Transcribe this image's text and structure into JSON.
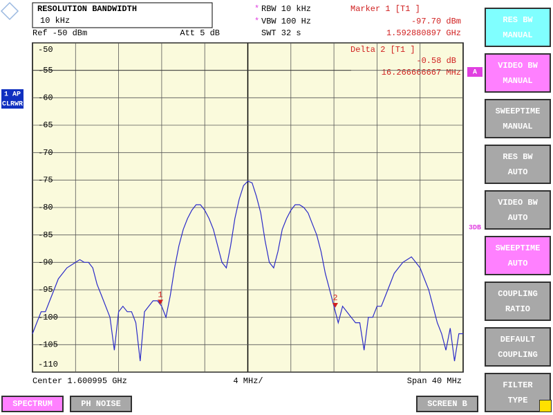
{
  "header": {
    "title": "RESOLUTION BANDWIDTH",
    "value": "10 kHz"
  },
  "settings": {
    "rbw": "RBW 10 kHz",
    "vbw": "VBW 100 Hz",
    "swt": "SWT 32 s",
    "ref": "Ref -50 dBm",
    "att": "Att 5 dB"
  },
  "marker_info": {
    "marker1": [
      "Marker 1 [T1 ]",
      "-97.70 dBm",
      "1.592880897 GHz"
    ],
    "delta2": [
      "Delta 2 [T1 ]",
      "-0.58 dB",
      "16.266666667 MHz"
    ]
  },
  "trace_status": [
    "1 AP",
    "CLRWR"
  ],
  "side_labels": [
    "A",
    "3DB"
  ],
  "chart_data": {
    "type": "line",
    "series": [
      {
        "color": "#2a2ac8",
        "values": [
          -103,
          -101,
          -99,
          -99,
          -97,
          -95,
          -93,
          -92,
          -91,
          -90.5,
          -90,
          -89.5,
          -90,
          -90,
          -91,
          -94,
          -96,
          -98,
          -100,
          -106,
          -99,
          -98,
          -99,
          -99,
          -101,
          -108,
          -99,
          -98,
          -97,
          -97,
          -98,
          -100,
          -96,
          -91,
          -87,
          -84,
          -82,
          -80.5,
          -79.5,
          -79.5,
          -80.5,
          -82,
          -84,
          -87,
          -90,
          -91,
          -87,
          -82,
          -78.5,
          -76,
          -75.2,
          -75.5,
          -78,
          -81,
          -86,
          -90,
          -91,
          -88,
          -84,
          -82,
          -80.5,
          -79.5,
          -79.5,
          -80,
          -81,
          -83,
          -85,
          -88,
          -92,
          -95,
          -98,
          -101,
          -98,
          -99,
          -100,
          -101,
          -101,
          -106,
          -100,
          -100,
          -98,
          -98,
          -96,
          -94,
          -92,
          -91,
          -90,
          -89.5,
          -89,
          -90,
          -91,
          -93,
          -95,
          -98,
          -101,
          -103,
          -106,
          -102,
          -108,
          -103,
          -103
        ]
      }
    ],
    "ylim": [
      -110,
      -50
    ],
    "yticks": [
      -50,
      -55,
      -60,
      -65,
      -70,
      -75,
      -80,
      -85,
      -90,
      -95,
      -100,
      -105,
      -110
    ],
    "grid": true,
    "markers": [
      {
        "label": "1",
        "value": -97.7,
        "color": "#d02020"
      },
      {
        "label": "2",
        "value": -98.28,
        "color": "#d02020"
      }
    ],
    "footer": [
      "Center 1.600995 GHz",
      "4 MHz/",
      "Span 40 MHz"
    ]
  },
  "softkeys": [
    {
      "lines": [
        "RES BW",
        "MANUAL"
      ],
      "color": "#80ffff"
    },
    {
      "lines": [
        "VIDEO BW",
        "MANUAL"
      ],
      "color": "#ff80ff"
    },
    {
      "lines": [
        "SWEEPTIME",
        "MANUAL"
      ],
      "color": "#a8a8a8"
    },
    {
      "lines": [
        "RES BW",
        "AUTO"
      ],
      "color": "#a8a8a8"
    },
    {
      "lines": [
        "VIDEO BW",
        "AUTO"
      ],
      "color": "#a8a8a8"
    },
    {
      "lines": [
        "SWEEPTIME",
        "AUTO"
      ],
      "color": "#ff80ff"
    },
    {
      "lines": [
        "COUPLING",
        "RATIO"
      ],
      "color": "#a8a8a8"
    },
    {
      "lines": [
        "DEFAULT",
        "COUPLING"
      ],
      "color": "#a8a8a8"
    },
    {
      "lines": [
        "FILTER",
        "TYPE"
      ],
      "color": "#a8a8a8"
    }
  ],
  "tabs": [
    {
      "label": "SPECTRUM",
      "color": "#ff80ff"
    },
    {
      "label": "PH NOISE",
      "color": "#a8a8a8"
    },
    {
      "label": "SCREEN B",
      "color": "#a8a8a8"
    }
  ]
}
